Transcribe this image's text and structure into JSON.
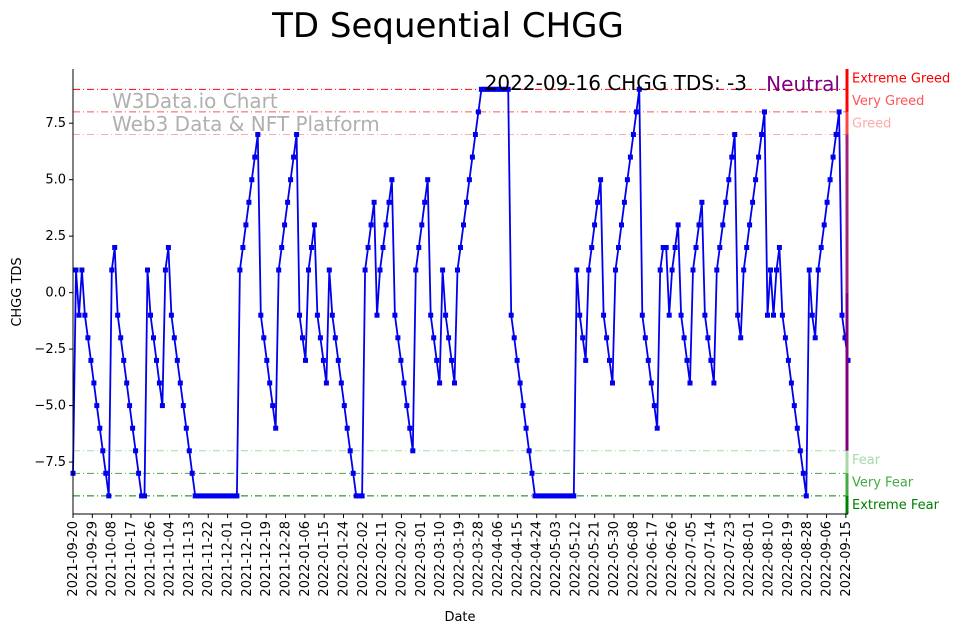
{
  "chart_data": {
    "type": "line",
    "title": "TD Sequential CHGG",
    "xlabel": "Date",
    "ylabel": "CHGG TDS",
    "ylim": [
      -9.8,
      9.9
    ],
    "yticks": [
      -7.5,
      -5.0,
      -2.5,
      0.0,
      2.5,
      5.0,
      7.5
    ],
    "ytick_labels": [
      "−7.5",
      "−5.0",
      "−2.5",
      "0.0",
      "2.5",
      "5.0",
      "7.5"
    ],
    "x_start": "2021-09-20",
    "x_end": "2022-09-16",
    "x_tick_labels": [
      "2021-09-20",
      "2021-09-29",
      "2021-10-08",
      "2021-10-17",
      "2021-10-26",
      "2021-11-04",
      "2021-11-13",
      "2021-11-22",
      "2021-12-01",
      "2021-12-10",
      "2021-12-19",
      "2021-12-28",
      "2022-01-06",
      "2022-01-15",
      "2022-01-24",
      "2022-02-02",
      "2022-02-11",
      "2022-02-20",
      "2022-03-01",
      "2022-03-10",
      "2022-03-19",
      "2022-03-28",
      "2022-04-06",
      "2022-04-15",
      "2022-04-24",
      "2022-05-03",
      "2022-05-12",
      "2022-05-21",
      "2022-05-30",
      "2022-06-08",
      "2022-06-17",
      "2022-06-26",
      "2022-07-05",
      "2022-07-14",
      "2022-07-23",
      "2022-08-01",
      "2022-08-10",
      "2022-08-19",
      "2022-08-28",
      "2022-09-06",
      "2022-09-15"
    ],
    "annotation": "2022-09-16 CHGG TDS: -3",
    "status": "Neutral",
    "watermark": [
      "W3Data.io Chart",
      "Web3 Data & NFT Platform"
    ],
    "levels": [
      {
        "name": "Extreme Greed",
        "value": 9,
        "color": "#ff0000"
      },
      {
        "name": "Very Greed",
        "value": 8,
        "color": "#ff5555"
      },
      {
        "name": "Greed",
        "value": 7,
        "color": "#ffaaaa"
      },
      {
        "name": "Fear",
        "value": -7,
        "color": "#a8d8a8"
      },
      {
        "name": "Very Fear",
        "value": -8,
        "color": "#44aa44"
      },
      {
        "name": "Extreme Fear",
        "value": -9,
        "color": "#008000"
      }
    ],
    "series": [
      {
        "name": "CHGG TDS",
        "color": "#0000ee",
        "values": [
          -8,
          1,
          -1,
          1,
          -1,
          -2,
          -3,
          -4,
          -5,
          -6,
          -7,
          -8,
          -9,
          1,
          2,
          -1,
          -2,
          -3,
          -4,
          -5,
          -6,
          -7,
          -8,
          -9,
          -9,
          1,
          -1,
          -2,
          -3,
          -4,
          -5,
          1,
          2,
          -1,
          -2,
          -3,
          -4,
          -5,
          -6,
          -7,
          -8,
          -9,
          -9,
          -9,
          -9,
          -9,
          -9,
          -9,
          -9,
          -9,
          -9,
          -9,
          -9,
          -9,
          -9,
          -9,
          1,
          2,
          3,
          4,
          5,
          6,
          7,
          -1,
          -2,
          -3,
          -4,
          -5,
          -6,
          1,
          2,
          3,
          4,
          5,
          6,
          7,
          -1,
          -2,
          -3,
          1,
          2,
          3,
          -1,
          -2,
          -3,
          -4,
          1,
          -1,
          -2,
          -3,
          -4,
          -5,
          -6,
          -7,
          -8,
          -9,
          -9,
          -9,
          1,
          2,
          3,
          4,
          -1,
          1,
          2,
          3,
          4,
          5,
          -1,
          -2,
          -3,
          -4,
          -5,
          -6,
          -7,
          1,
          2,
          3,
          4,
          5,
          -1,
          -2,
          -3,
          -4,
          1,
          -1,
          -2,
          -3,
          -4,
          1,
          2,
          3,
          4,
          5,
          6,
          7,
          8,
          9,
          9,
          9,
          9,
          9,
          9,
          9,
          9,
          9,
          9,
          -1,
          -2,
          -3,
          -4,
          -5,
          -6,
          -7,
          -8,
          -9,
          -9,
          -9,
          -9,
          -9,
          -9,
          -9,
          -9,
          -9,
          -9,
          -9,
          -9,
          -9,
          -9,
          1,
          -1,
          -2,
          -3,
          1,
          2,
          3,
          4,
          5,
          -1,
          -2,
          -3,
          -4,
          1,
          2,
          3,
          4,
          5,
          6,
          7,
          8,
          9,
          -1,
          -2,
          -3,
          -4,
          -5,
          -6,
          1,
          2,
          2,
          -1,
          1,
          2,
          3,
          -1,
          -2,
          -3,
          -4,
          1,
          2,
          3,
          4,
          -1,
          -2,
          -3,
          -4,
          1,
          2,
          3,
          4,
          5,
          6,
          7,
          -1,
          -2,
          1,
          2,
          3,
          4,
          5,
          6,
          7,
          8,
          -1,
          1,
          -1,
          1,
          2,
          -1,
          -2,
          -3,
          -4,
          -5,
          -6,
          -7,
          -8,
          -9,
          1,
          -1,
          -2,
          1,
          2,
          3,
          4,
          5,
          6,
          7,
          8,
          -1,
          -2,
          -3
        ]
      }
    ]
  }
}
